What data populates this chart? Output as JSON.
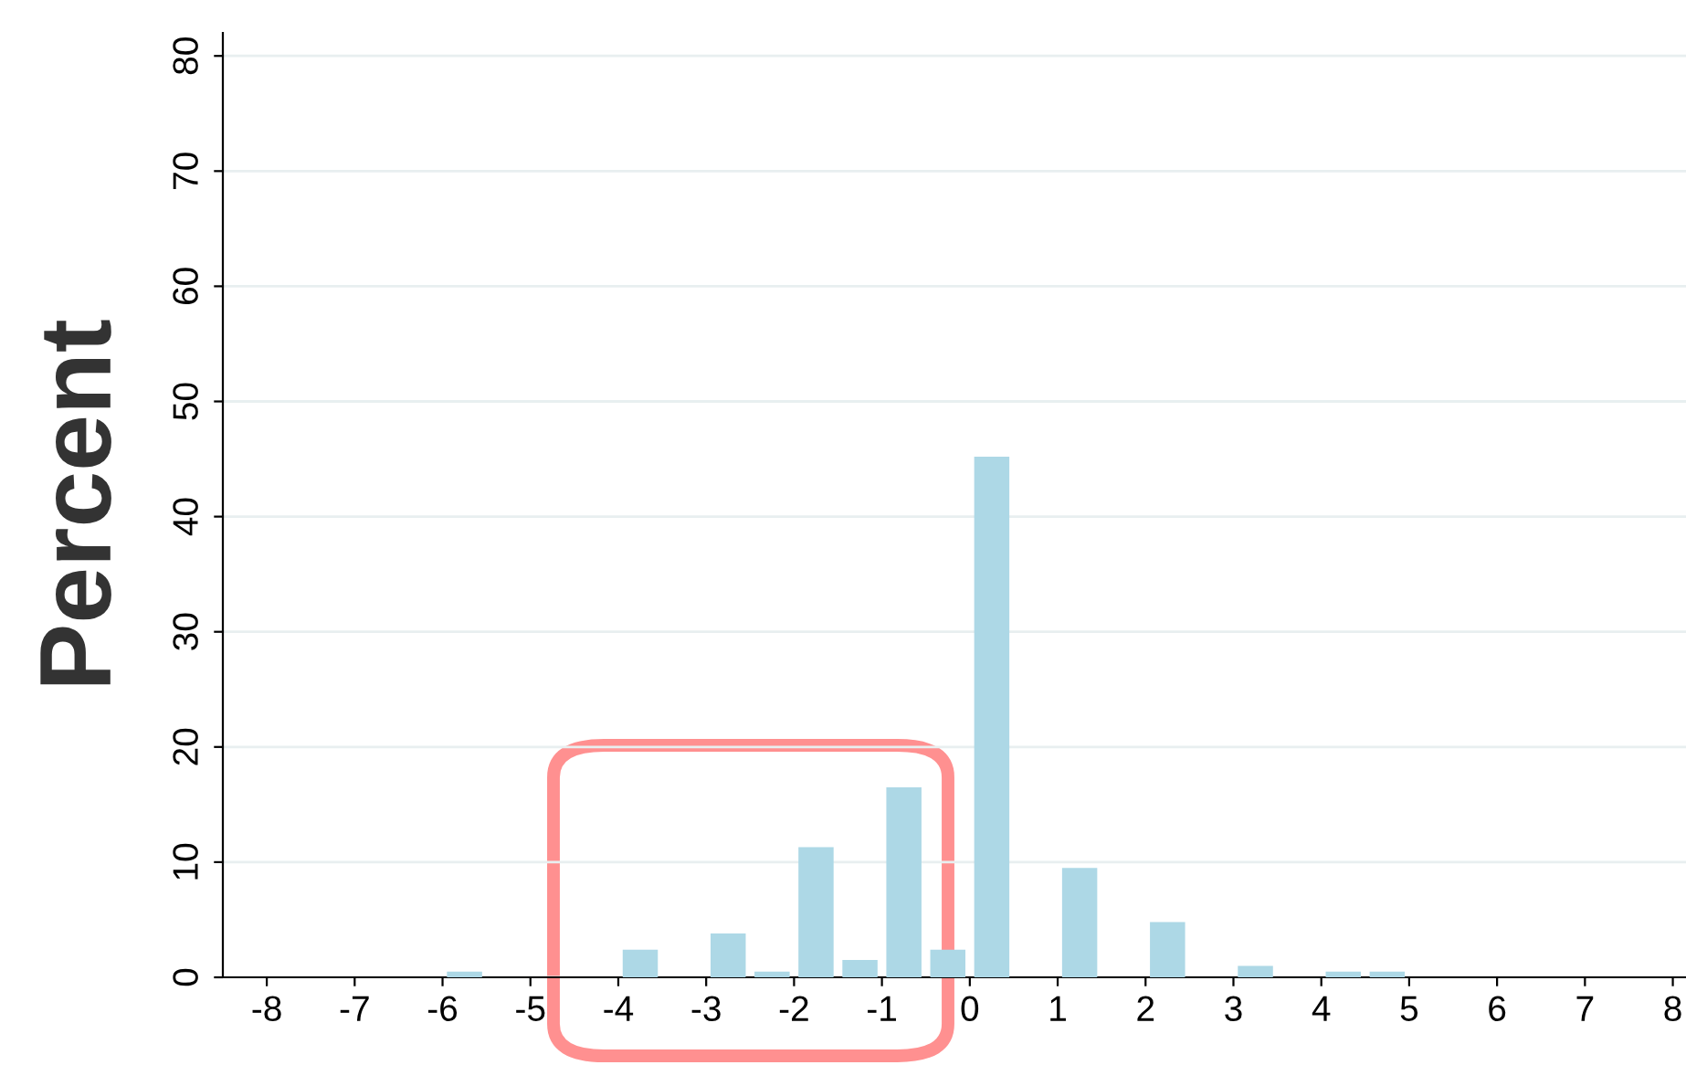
{
  "chart_data": {
    "type": "histogram",
    "ylabel": "Percent",
    "bins": [
      -6,
      -5.5,
      -5,
      -4.5,
      -4,
      -3.5,
      -3,
      -2.5,
      -2,
      -1.5,
      -1,
      -0.5,
      0,
      0.5,
      1,
      1.5,
      2,
      2.5,
      3,
      3.5,
      4,
      4.5,
      5
    ],
    "values": [
      0.5,
      0,
      0,
      0,
      2.4,
      0,
      3.8,
      0.5,
      11.3,
      1.5,
      16.5,
      2.4,
      45.2,
      0,
      9.5,
      0,
      4.8,
      0,
      1,
      0,
      0.5,
      0.5
    ],
    "color": "#add8e6",
    "xlim": [
      -8.5,
      8.15
    ],
    "xticks": [
      -8,
      -7,
      -6,
      -5,
      -4,
      -3,
      -2,
      -1,
      0,
      1,
      2,
      3,
      4,
      5,
      6,
      7,
      8
    ],
    "ylim": [
      0,
      82
    ],
    "yticks": [
      0,
      10,
      20,
      30,
      40,
      50,
      60,
      70,
      80
    ],
    "grid": "y"
  }
}
